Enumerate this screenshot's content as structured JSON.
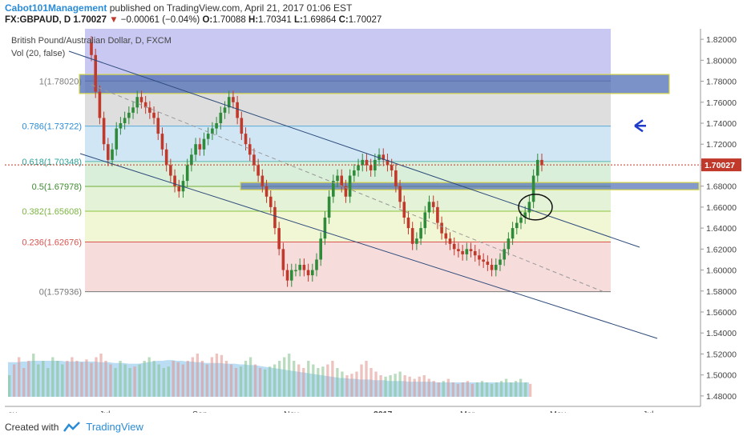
{
  "header": {
    "author": "Cabot101Management",
    "published_text": "published on TradingView.com, April 21, 2017 01:06 EST",
    "symbol": "FX:GBPAUD, D",
    "last": "1.70027",
    "change_arrow": "▼",
    "change": "−0.00061 (−0.04%)",
    "open_label": "O:",
    "open": "1.70088",
    "high_label": "H:",
    "high": "1.70341",
    "low_label": "L:",
    "low": "1.69864",
    "close_label": "C:",
    "close": "1.70027"
  },
  "footer": {
    "created_with": "Created with",
    "brand": "TradingView"
  },
  "colors": {
    "up": "#2e8b3a",
    "down": "#c0392b",
    "accent": "#2a8cd8",
    "channel": "#2c4a7a"
  },
  "chart_data": {
    "type": "candlestick",
    "title": "British Pound/Australian Dollar, D, FXCM",
    "indicator_label": "Vol (20, false)",
    "ylim": [
      1.47,
      1.83
    ],
    "y_ticks": [
      "1.82000",
      "1.80000",
      "1.78000",
      "1.76000",
      "1.74000",
      "1.72000",
      "1.70000",
      "1.68000",
      "1.66000",
      "1.64000",
      "1.62000",
      "1.60000",
      "1.58000",
      "1.56000",
      "1.54000",
      "1.52000",
      "1.50000",
      "1.48000"
    ],
    "x_ticks": [
      "ay",
      "Jul",
      "Sep",
      "Nov",
      "2017",
      "Mar",
      "May",
      "Jul"
    ],
    "last_price_label": "1.70027",
    "fib_levels": [
      {
        "label": "1(1.78020)",
        "value": 1.7802
      },
      {
        "label": "0.786(1.73722)",
        "value": 1.73722
      },
      {
        "label": "0.618(1.70348)",
        "value": 1.70348
      },
      {
        "label": "0.5(1.67978)",
        "value": 1.67978
      },
      {
        "label": "0.382(1.65608)",
        "value": 1.65608
      },
      {
        "label": "0.236(1.62676)",
        "value": 1.62676
      },
      {
        "label": "0(1.57936)",
        "value": 1.57936
      }
    ],
    "close_series": [
      1.805,
      1.77,
      1.745,
      1.72,
      1.705,
      1.715,
      1.735,
      1.74,
      1.745,
      1.75,
      1.755,
      1.765,
      1.76,
      1.755,
      1.75,
      1.745,
      1.73,
      1.715,
      1.7,
      1.69,
      1.68,
      1.675,
      1.685,
      1.7,
      1.71,
      1.72,
      1.715,
      1.725,
      1.73,
      1.735,
      1.74,
      1.75,
      1.755,
      1.765,
      1.76,
      1.745,
      1.73,
      1.72,
      1.71,
      1.7,
      1.69,
      1.68,
      1.67,
      1.66,
      1.64,
      1.62,
      1.6,
      1.59,
      1.6,
      1.6,
      1.605,
      1.6,
      1.595,
      1.6,
      1.61,
      1.63,
      1.65,
      1.67,
      1.685,
      1.69,
      1.68,
      1.67,
      1.69,
      1.695,
      1.7,
      1.705,
      1.7,
      1.695,
      1.705,
      1.71,
      1.705,
      1.7,
      1.695,
      1.68,
      1.665,
      1.65,
      1.64,
      1.625,
      1.63,
      1.64,
      1.655,
      1.665,
      1.66,
      1.645,
      1.635,
      1.63,
      1.625,
      1.62,
      1.618,
      1.615,
      1.62,
      1.618,
      1.614,
      1.61,
      1.608,
      1.605,
      1.6,
      1.605,
      1.61,
      1.62,
      1.63,
      1.64,
      1.645,
      1.65,
      1.655,
      1.665,
      1.69,
      1.705,
      1.7
    ],
    "volume_series": [
      0.3,
      0.45,
      0.55,
      0.4,
      0.5,
      0.6,
      0.45,
      0.5,
      0.4,
      0.55,
      0.5,
      0.45,
      0.5,
      0.55,
      0.5,
      0.48,
      0.52,
      0.47,
      0.55,
      0.6,
      0.5,
      0.45,
      0.4,
      0.5,
      0.45,
      0.4,
      0.42,
      0.45,
      0.5,
      0.55,
      0.5,
      0.45,
      0.4,
      0.42,
      0.5,
      0.48,
      0.45,
      0.5,
      0.55,
      0.6,
      0.5,
      0.45,
      0.55,
      0.6,
      0.58,
      0.5,
      0.45,
      0.4,
      0.42,
      0.5,
      0.55,
      0.45,
      0.4,
      0.38,
      0.42,
      0.45,
      0.5,
      0.55,
      0.6,
      0.5,
      0.45,
      0.4,
      0.5,
      0.45,
      0.4,
      0.42,
      0.45,
      0.5,
      0.4,
      0.35,
      0.3,
      0.32,
      0.35,
      0.45,
      0.5,
      0.4,
      0.35,
      0.3,
      0.28,
      0.3,
      0.32,
      0.35,
      0.3,
      0.28,
      0.25,
      0.28,
      0.3,
      0.25,
      0.22,
      0.2,
      0.22,
      0.25,
      0.2,
      0.18,
      0.2,
      0.22,
      0.18,
      0.2,
      0.22,
      0.2,
      0.18,
      0.2,
      0.22,
      0.25,
      0.2,
      0.22,
      0.25,
      0.2,
      0.18
    ],
    "volume_ma": [
      0.48,
      0.48,
      0.48,
      0.49,
      0.49,
      0.5,
      0.5,
      0.5,
      0.5,
      0.5,
      0.5,
      0.5,
      0.49,
      0.49,
      0.49,
      0.49,
      0.49,
      0.49,
      0.49,
      0.48,
      0.48,
      0.48,
      0.47,
      0.47,
      0.47,
      0.46,
      0.46,
      0.46,
      0.47,
      0.48,
      0.49,
      0.5,
      0.5,
      0.51,
      0.51,
      0.5,
      0.5,
      0.49,
      0.49,
      0.48,
      0.48,
      0.47,
      0.47,
      0.47,
      0.47,
      0.46,
      0.46,
      0.46,
      0.45,
      0.45,
      0.44,
      0.44,
      0.43,
      0.42,
      0.41,
      0.4,
      0.39,
      0.38,
      0.37,
      0.36,
      0.35,
      0.34,
      0.33,
      0.32,
      0.31,
      0.3,
      0.29,
      0.28,
      0.27,
      0.26,
      0.26,
      0.25,
      0.25,
      0.24,
      0.24,
      0.24,
      0.23,
      0.23,
      0.23,
      0.22,
      0.22,
      0.22,
      0.22,
      0.21,
      0.21,
      0.21,
      0.21,
      0.21,
      0.21,
      0.2,
      0.2,
      0.2,
      0.2,
      0.2,
      0.2,
      0.2,
      0.2,
      0.2,
      0.2,
      0.2,
      0.2,
      0.2,
      0.2,
      0.2,
      0.2,
      0.2,
      0.2,
      0.2,
      0.2
    ]
  }
}
